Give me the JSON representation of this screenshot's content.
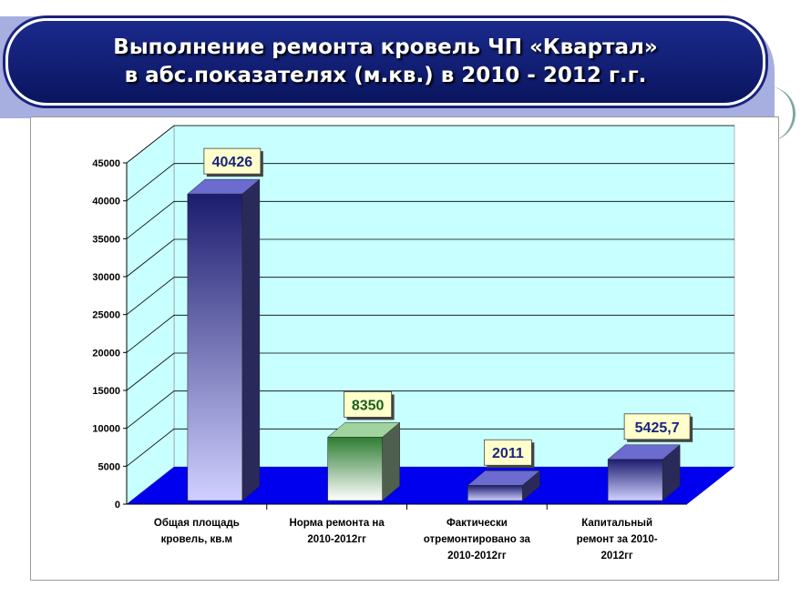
{
  "title": {
    "line1": "Выполнение ремонта кровель ЧП «Квартал»",
    "line2": "в абс.показателях (м.кв.) в 2010 - 2012 г.г."
  },
  "chart_data": {
    "type": "bar",
    "ylim": [
      0,
      45000
    ],
    "yticks": [
      "0",
      "5000",
      "10000",
      "15000",
      "20000",
      "25000",
      "30000",
      "35000",
      "40000",
      "45000"
    ],
    "grid": true,
    "categories": [
      [
        "Общая площадь",
        "кровель, кв.м"
      ],
      [
        "Норма ремонта на",
        "2010-2012гг"
      ],
      [
        "Фактически",
        "отремонтировано за",
        "2010-2012гг"
      ],
      [
        "Капитальный",
        "ремонт за 2010-",
        "2012гг"
      ]
    ],
    "values": [
      40426,
      8350,
      2011,
      5425.7
    ],
    "data_labels": [
      "40426",
      "8350",
      "2011",
      "5425,7"
    ],
    "label_colors": [
      "#1a237e",
      "#1b5e20",
      "#1a237e",
      "#1a237e"
    ],
    "colors": {
      "wall": "#c8ffff",
      "floor": "#0000ee",
      "bar_blue_top": "#1c1c6e",
      "bar_blue_bottom": "#d0d0ff",
      "bar_green_top": "#2e7d32",
      "bar_green_bottom": "#ffffff",
      "label_box": "#ffffcc"
    }
  }
}
